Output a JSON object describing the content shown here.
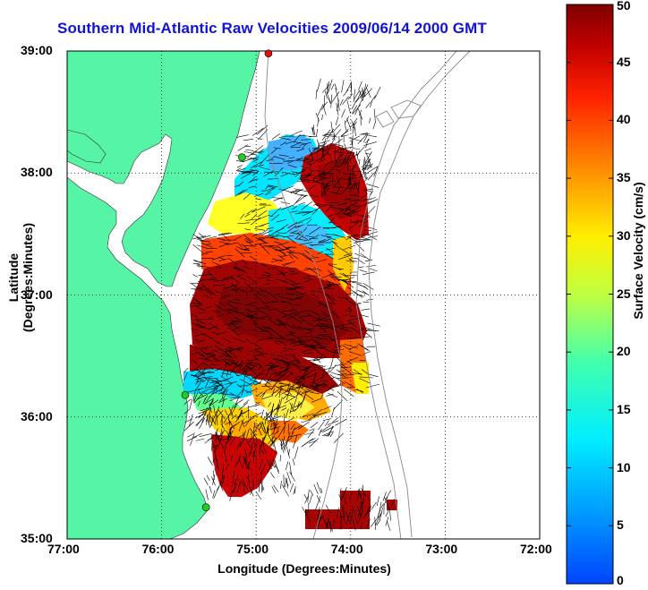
{
  "title": "Southern Mid-Atlantic Raw Velocities 2009/06/14 2000 GMT",
  "axes": {
    "xlabel": "Longitude (Degrees:Minutes)",
    "ylabel": "Latitude (Degrees:Minutes)",
    "xticks": [
      "77:00",
      "76:00",
      "75:00",
      "74:00",
      "73:00",
      "72:00"
    ],
    "yticks": [
      "39:00",
      "38:00",
      "37:00",
      "36:00",
      "35:00"
    ],
    "grid": true,
    "grid_style": "dotted"
  },
  "colorbar": {
    "label": "Surface Velocity (cm/s)",
    "ticks": [
      "50",
      "45",
      "40",
      "35",
      "30",
      "25",
      "20",
      "15",
      "10",
      "5",
      "0"
    ],
    "range": [
      0,
      50
    ],
    "colormap": "jet"
  },
  "colors": {
    "land": "#55f5a5",
    "title": "#1212d6",
    "station_marker": "#22cc22",
    "station_marker_alt": "#e01010"
  },
  "stations": [
    {
      "lat": 38.13,
      "lon": -75.15,
      "color": "green"
    },
    {
      "lat": 36.18,
      "lon": -75.75,
      "color": "green"
    },
    {
      "lat": 35.26,
      "lon": -75.53,
      "color": "green"
    },
    {
      "lat": 38.98,
      "lon": -74.87,
      "color": "red"
    }
  ]
}
